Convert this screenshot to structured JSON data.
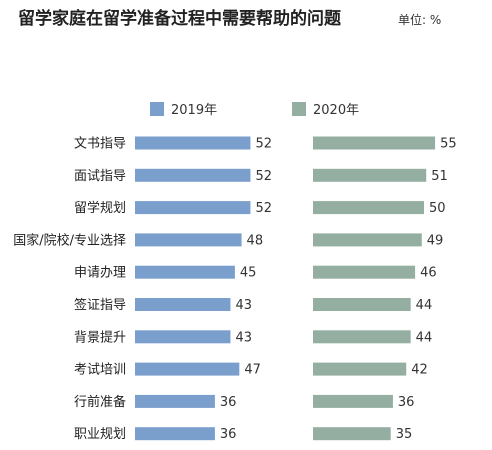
{
  "chart_data": {
    "type": "bar",
    "title": "留学家庭在留学准备过程中需要帮助的问题",
    "unit": "单位: %",
    "categories": [
      "文书指导",
      "面试指导",
      "留学规划",
      "国家/院校/专业选择",
      "申请办理",
      "签证指导",
      "背景提升",
      "考试培训",
      "行前准备",
      "职业规划"
    ],
    "series": [
      {
        "name": "2019年",
        "color": "#7b9fcc",
        "values": [
          52,
          52,
          52,
          48,
          45,
          43,
          43,
          47,
          36,
          36
        ]
      },
      {
        "name": "2020年",
        "color": "#94aea1",
        "values": [
          55,
          51,
          50,
          49,
          46,
          44,
          44,
          42,
          36,
          35
        ]
      }
    ],
    "xlabel": "",
    "ylabel": "",
    "legend_position": "top",
    "grid": false
  }
}
